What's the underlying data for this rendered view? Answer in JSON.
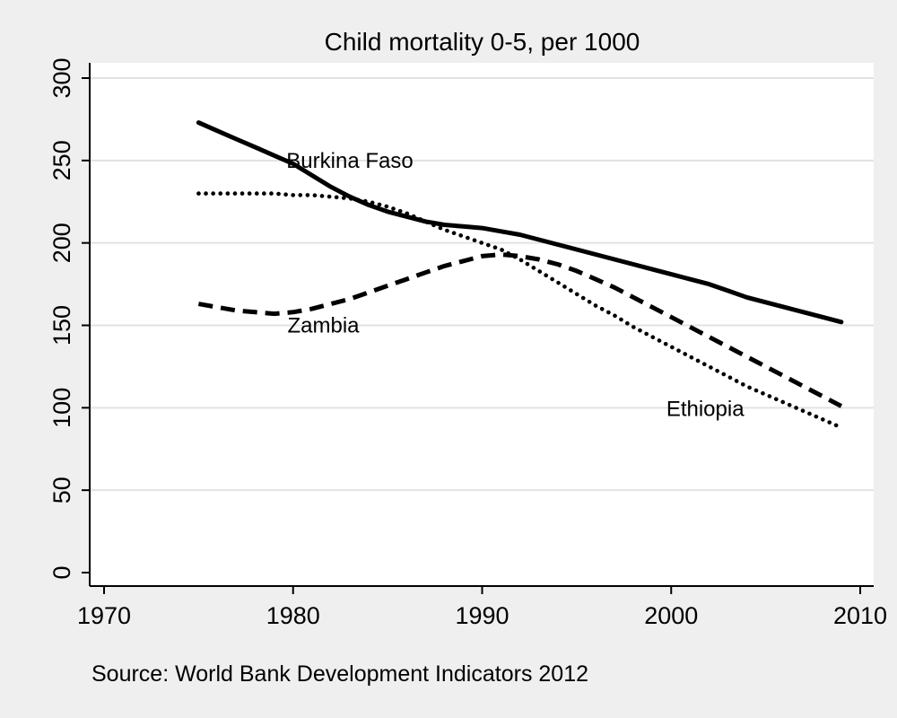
{
  "chart": {
    "title": "Child mortality 0-5, per 1000",
    "source": "Source: World Bank Development Indicators 2012"
  },
  "chart_data": {
    "type": "line",
    "title": "Child mortality 0-5, per 1000",
    "note": "Source: World Bank Development Indicators 2012",
    "xlabel": "",
    "ylabel": "",
    "xlim": [
      1970,
      2010
    ],
    "ylim": [
      0,
      300
    ],
    "xticks": [
      1970,
      1980,
      1990,
      2000,
      2010
    ],
    "yticks": [
      0,
      50,
      100,
      150,
      200,
      250,
      300
    ],
    "grid": "horizontal-only",
    "legend": "none",
    "background_color": "#efefef",
    "plot_background_color": "#ffffff",
    "gridline_color": "#e2e2e2",
    "axis_color": "#000000",
    "x": [
      1975,
      1976,
      1977,
      1978,
      1979,
      1980,
      1981,
      1982,
      1983,
      1984,
      1985,
      1986,
      1987,
      1988,
      1989,
      1990,
      1991,
      1992,
      1993,
      1994,
      1995,
      1996,
      1997,
      1998,
      1999,
      2000,
      2001,
      2002,
      2003,
      2004,
      2005,
      2006,
      2007,
      2008,
      2009
    ],
    "series": [
      {
        "name": "Burkina Faso",
        "pattern": "solid",
        "color": "#000000",
        "values": [
          273,
          268,
          263,
          258,
          253,
          248,
          241,
          234,
          228,
          223,
          219,
          216,
          213,
          211,
          210,
          209,
          207,
          205,
          202,
          199,
          196,
          193,
          190,
          187,
          184,
          181,
          178,
          175,
          171,
          167,
          164,
          161,
          158,
          155,
          152
        ]
      },
      {
        "name": "Ethiopia",
        "pattern": "dot",
        "color": "#000000",
        "values": [
          230,
          230,
          230,
          230,
          230,
          229,
          229,
          228,
          227,
          225,
          222,
          218,
          213,
          208,
          204,
          200,
          196,
          190,
          183,
          176,
          169,
          162,
          156,
          149,
          143,
          137,
          131,
          125,
          119,
          113,
          108,
          103,
          98,
          93,
          88
        ]
      },
      {
        "name": "Zambia",
        "pattern": "dash",
        "color": "#000000",
        "values": [
          163,
          161,
          159,
          158,
          157,
          158,
          160,
          163,
          166,
          170,
          174,
          178,
          182,
          186,
          189,
          192,
          193,
          192,
          190,
          187,
          183,
          178,
          173,
          167,
          161,
          155,
          149,
          143,
          137,
          131,
          125,
          119,
          113,
          107,
          101
        ]
      }
    ],
    "annotations": [
      {
        "text": "Burkina Faso",
        "x": 1983.0,
        "y": 250.5
      },
      {
        "text": "Zambia",
        "x": 1981.6,
        "y": 150.5
      },
      {
        "text": "Ethiopia",
        "x": 2001.8,
        "y": 100
      }
    ]
  }
}
